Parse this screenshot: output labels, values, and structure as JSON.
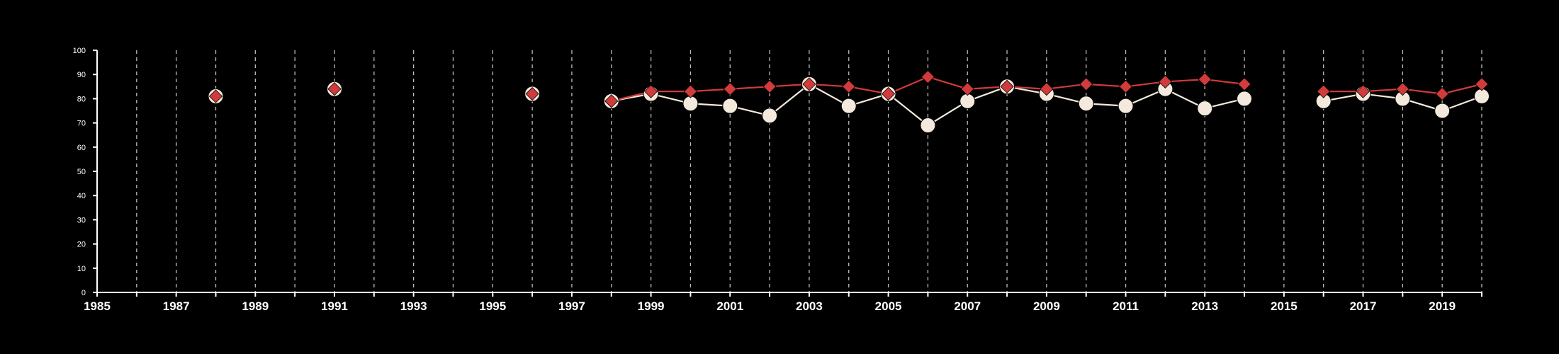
{
  "chart_data": {
    "type": "line",
    "title": "",
    "xlabel": "",
    "ylabel": "",
    "xlim": [
      1985,
      2020
    ],
    "ylim": [
      0,
      100
    ],
    "x_ticks": [
      1985,
      1987,
      1989,
      1991,
      1993,
      1995,
      1997,
      1999,
      2001,
      2003,
      2005,
      2007,
      2009,
      2011,
      2013,
      2015,
      2017,
      2019
    ],
    "x_tick_labels": [
      "1985",
      "1987",
      "1989",
      "1991",
      "1993",
      "1995",
      "1997",
      "1999",
      "2001",
      "2003",
      "2005",
      "2007",
      "2009",
      "2011",
      "2013",
      "2015",
      "2017",
      "2019"
    ],
    "y_ticks": [
      0,
      10,
      20,
      30,
      40,
      50,
      60,
      70,
      80,
      90,
      100
    ],
    "y_tick_labels": [
      "0",
      "10",
      "20",
      "30",
      "40",
      "50",
      "60",
      "70",
      "80",
      "90",
      "100"
    ],
    "vertical_grid": "dashed at every year",
    "horizontal_grid": false,
    "legend": "none",
    "colors": {
      "background": "#000000",
      "axis": "#ffffff",
      "grid": "#bdbdbd",
      "series_circle": "#f3e9dc",
      "series_diamond": "#d13b3b"
    },
    "series": [
      {
        "marker": "circle",
        "color": "#f3e9dc",
        "values": [
          [
            1988,
            81
          ],
          [
            1991,
            84
          ],
          [
            1996,
            82
          ],
          [
            1998,
            79
          ],
          [
            1999,
            82
          ],
          [
            2000,
            78
          ],
          [
            2001,
            77
          ],
          [
            2002,
            73
          ],
          [
            2003,
            86
          ],
          [
            2004,
            77
          ],
          [
            2005,
            82
          ],
          [
            2006,
            69
          ],
          [
            2007,
            79
          ],
          [
            2008,
            85
          ],
          [
            2009,
            82
          ],
          [
            2010,
            78
          ],
          [
            2011,
            77
          ],
          [
            2012,
            84
          ],
          [
            2013,
            76
          ],
          [
            2014,
            80
          ],
          [
            2016,
            79
          ],
          [
            2017,
            82
          ],
          [
            2018,
            80
          ],
          [
            2019,
            75
          ],
          [
            2020,
            81
          ]
        ]
      },
      {
        "marker": "diamond",
        "color": "#d13b3b",
        "values": [
          [
            1988,
            81
          ],
          [
            1991,
            84
          ],
          [
            1996,
            82
          ],
          [
            1998,
            79
          ],
          [
            1999,
            83
          ],
          [
            2000,
            83
          ],
          [
            2001,
            84
          ],
          [
            2002,
            85
          ],
          [
            2003,
            86
          ],
          [
            2004,
            85
          ],
          [
            2005,
            82
          ],
          [
            2006,
            89
          ],
          [
            2007,
            84
          ],
          [
            2008,
            85
          ],
          [
            2009,
            84
          ],
          [
            2010,
            86
          ],
          [
            2011,
            85
          ],
          [
            2012,
            87
          ],
          [
            2013,
            88
          ],
          [
            2014,
            86
          ],
          [
            2016,
            83
          ],
          [
            2017,
            83
          ],
          [
            2018,
            84
          ],
          [
            2019,
            82
          ],
          [
            2020,
            86
          ]
        ]
      }
    ]
  }
}
